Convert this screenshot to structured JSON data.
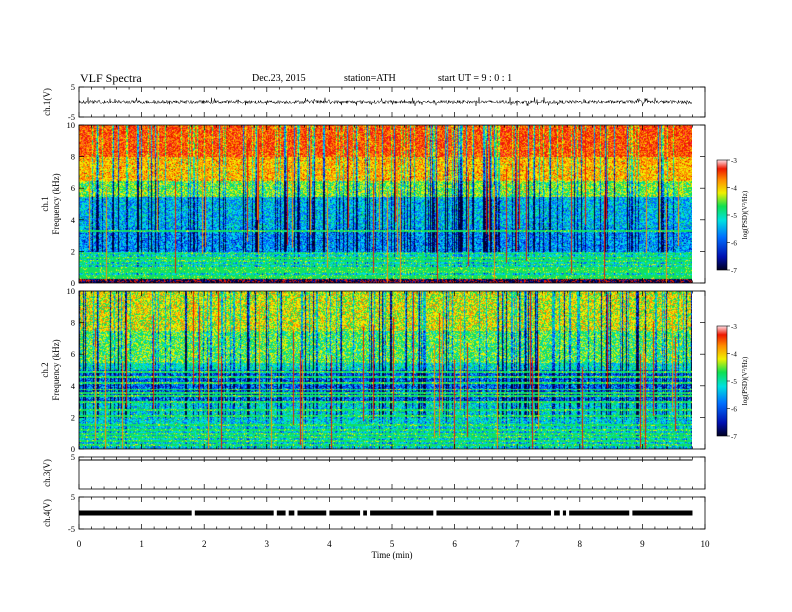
{
  "header": {
    "title": "VLF Spectra",
    "date": "Dec.23, 2015",
    "station": "station=ATH",
    "start": "start UT =  9 : 0 : 1"
  },
  "chart_data": [
    {
      "type": "line",
      "panel": "ch1-waveform",
      "ylabel": "ch.1(V)",
      "ylim": [
        -5,
        5
      ],
      "yticks": [
        "5",
        "-5"
      ],
      "baseline_level": 0,
      "approx_range": [
        -1.4,
        1.6
      ]
    },
    {
      "type": "heatmap",
      "panel": "ch1-spectrogram",
      "ylabel_lines": [
        "ch.1",
        "Frequency  (kHz)"
      ],
      "ylim": [
        0,
        10
      ],
      "yticks": [
        "0",
        "2",
        "4",
        "6",
        "8",
        "10"
      ],
      "colorbar": {
        "label": "log(PSD)(V²/Hz)",
        "range": [
          -7,
          -3
        ],
        "ticks": [
          "-3",
          "-4",
          "-5",
          "-6",
          "-7"
        ]
      }
    },
    {
      "type": "heatmap",
      "panel": "ch2-spectrogram",
      "ylabel_lines": [
        "ch.2",
        "Frequency  (kHz)"
      ],
      "ylim": [
        0,
        10
      ],
      "yticks": [
        "0",
        "2",
        "4",
        "6",
        "8",
        "10"
      ],
      "colorbar": {
        "label": "log(PSD)(V²/Hz)",
        "range": [
          -7,
          -3
        ],
        "ticks": [
          "-3",
          "-4",
          "-5",
          "-6",
          "-7"
        ]
      }
    },
    {
      "type": "line",
      "panel": "ch3-waveform",
      "ylabel": "ch.3(V)",
      "ylim": [
        -5,
        5
      ],
      "yticks": [
        "5"
      ],
      "level": 5
    },
    {
      "type": "line",
      "panel": "ch4-waveform",
      "ylabel": "ch.4(V)",
      "ylim": [
        -5,
        5
      ],
      "yticks": [
        "5",
        "-5"
      ],
      "level": 0,
      "gaps_min": [
        1.82,
        3.13,
        3.32,
        3.46,
        3.97,
        4.51,
        4.62,
        5.68,
        7.56,
        7.7,
        7.8,
        8.81
      ]
    }
  ],
  "xaxis": {
    "label": "Time  (min)",
    "xlim": [
      0,
      10
    ],
    "ticks": [
      "0",
      "1",
      "2",
      "3",
      "4",
      "5",
      "6",
      "7",
      "8",
      "9",
      "10"
    ],
    "data_end": 9.8
  },
  "colormap": [
    "#000033",
    "#0010b0",
    "#0060ff",
    "#00d8e8",
    "#10e060",
    "#f0f000",
    "#ff8800",
    "#ee1a00",
    "#ff2040"
  ]
}
